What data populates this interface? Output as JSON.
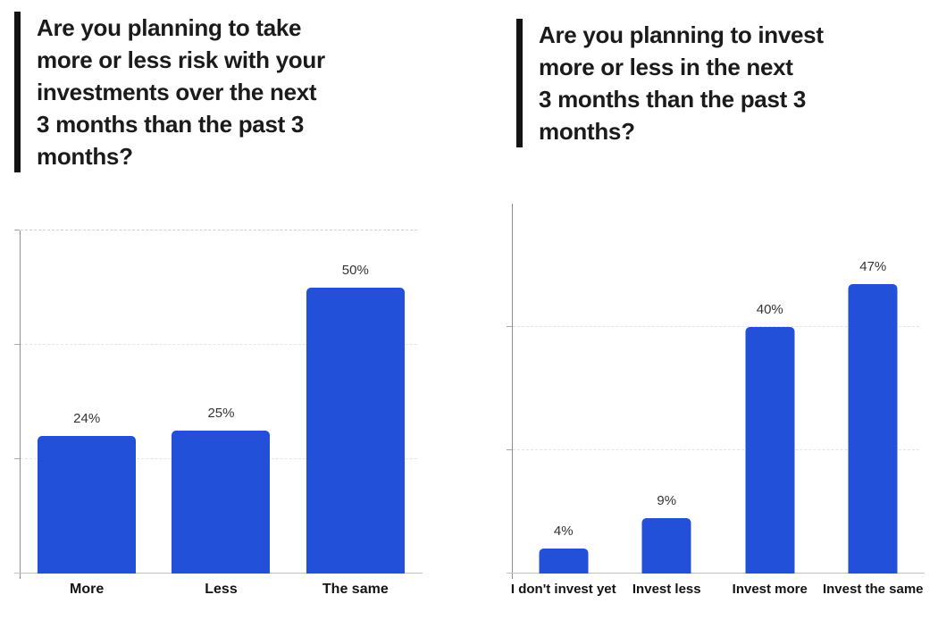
{
  "colors": {
    "bar_blue": "#2350d8",
    "title_black": "#1b1b1b",
    "axis_gray": "#8f8f8f",
    "baseline_gray": "#c2c2c2",
    "gridline_gray": "#e4e4e4",
    "top_gridline_gray": "#cfcfcf",
    "value_label_gray": "#333333",
    "category_label_black": "#141414"
  },
  "chart_data": [
    {
      "type": "bar",
      "title": "Are you planning to take\nmore or less risk with your\ninvestments over the next\n3 months than the past 3\nmonths?",
      "categories": [
        "More",
        "Less",
        "The same"
      ],
      "values": [
        24,
        25,
        50
      ],
      "value_labels": [
        "24%",
        "25%",
        "50%"
      ],
      "xlabel": "",
      "ylabel": "",
      "ylim": [
        0,
        60
      ],
      "gridlines": [
        20,
        40,
        60
      ],
      "grid_style": "dashed",
      "legend": false,
      "y_tick_labels_shown": false
    },
    {
      "type": "bar",
      "title": "Are you planning to invest\nmore or less in the next\n3 months than the past 3\nmonths?",
      "categories": [
        "I don't invest yet",
        "Invest less",
        "Invest more",
        "Invest the same"
      ],
      "values": [
        4,
        9,
        40,
        47
      ],
      "value_labels": [
        "4%",
        "9%",
        "40%",
        "47%"
      ],
      "xlabel": "",
      "ylabel": "",
      "ylim": [
        0,
        60
      ],
      "gridlines": [
        20,
        40
      ],
      "grid_style": "dashed",
      "legend": false,
      "y_tick_labels_shown": false
    }
  ]
}
